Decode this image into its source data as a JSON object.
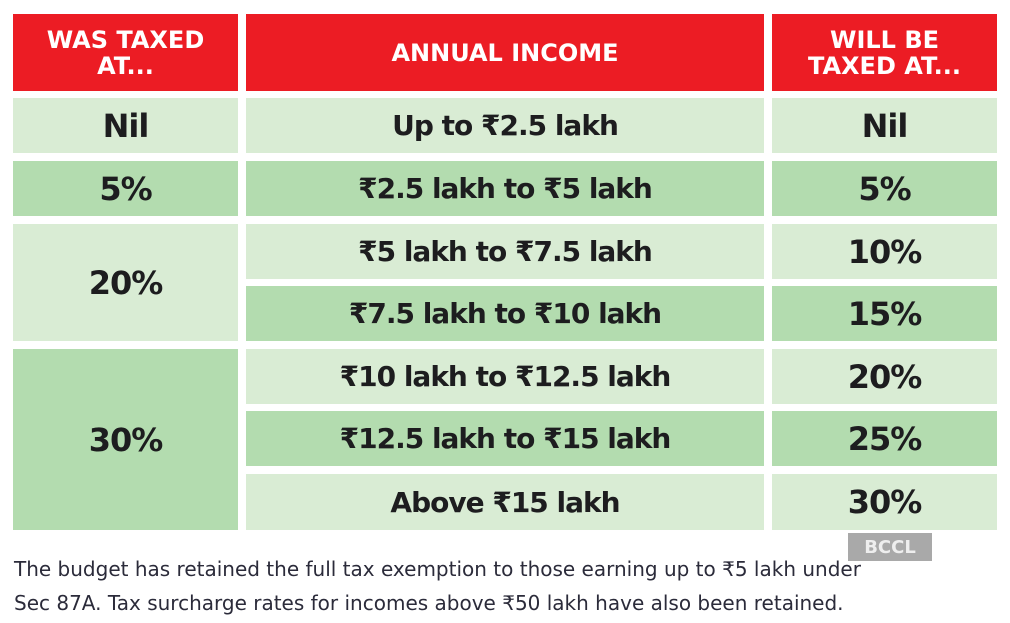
{
  "headers": {
    "was": "WAS TAXED AT...",
    "income": "ANNUAL INCOME",
    "will": "WILL BE TAXED AT..."
  },
  "was_groups": [
    "Nil",
    "5%",
    "20%",
    "30%"
  ],
  "rows": [
    {
      "income": "Up to ₹2.5 lakh",
      "will": "Nil"
    },
    {
      "income": "₹2.5 lakh to ₹5 lakh",
      "will": "5%"
    },
    {
      "income": "₹5 lakh to ₹7.5 lakh",
      "will": "10%"
    },
    {
      "income": "₹7.5 lakh to ₹10 lakh",
      "will": "15%"
    },
    {
      "income": "₹10 lakh to ₹12.5 lakh",
      "will": "20%"
    },
    {
      "income": "₹12.5 lakh to ₹15 lakh",
      "will": "25%"
    },
    {
      "income": "Above ₹15 lakh",
      "will": "30%"
    }
  ],
  "watermark": "BCCL",
  "caption": {
    "line1": "The budget has retained the full tax exemption to those earning up to ₹5 lakh under",
    "line2": "Sec 87A. Tax surcharge rates for incomes above ₹50 lakh have also been retained."
  },
  "colors": {
    "header": "#ec1c24",
    "light": "#d9ecd4",
    "dark": "#b3dcaf"
  }
}
